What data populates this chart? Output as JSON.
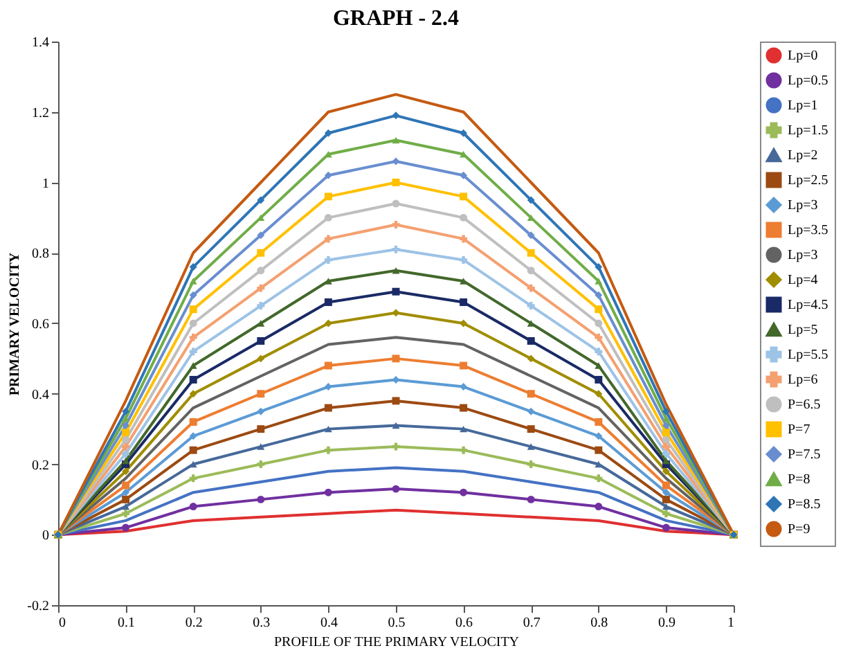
{
  "chart_data": {
    "type": "line",
    "title": "GRAPH - 2.4",
    "xlabel": "PROFILE OF THE PRIMARY VELOCITY",
    "ylabel": "PRIMARY VELOCITY",
    "x": [
      0,
      0.1,
      0.2,
      0.3,
      0.4,
      0.5,
      0.6,
      0.7,
      0.8,
      0.9,
      1
    ],
    "xlim": [
      0,
      1
    ],
    "xticks": [
      0,
      0.1,
      0.2,
      0.3,
      0.4,
      0.5,
      0.6,
      0.7,
      0.8,
      0.9,
      1
    ],
    "ylim": [
      -0.2,
      1.4
    ],
    "yticks": [
      -0.2,
      0,
      0.2,
      0.4,
      0.6,
      0.8,
      1,
      1.2,
      1.4
    ],
    "grid": false,
    "legend": "right",
    "series": [
      {
        "name": "Lp=0",
        "color": "#e03030",
        "marker": "none",
        "values": [
          0,
          0.01,
          0.04,
          0.05,
          0.06,
          0.07,
          0.06,
          0.05,
          0.04,
          0.01,
          0
        ]
      },
      {
        "name": "Lp=0.5",
        "color": "#7030a0",
        "marker": "circle",
        "values": [
          0,
          0.02,
          0.08,
          0.1,
          0.12,
          0.13,
          0.12,
          0.1,
          0.08,
          0.02,
          0
        ]
      },
      {
        "name": "Lp=1",
        "color": "#4472c4",
        "marker": "none",
        "values": [
          0,
          0.04,
          0.12,
          0.15,
          0.18,
          0.19,
          0.18,
          0.15,
          0.12,
          0.04,
          0
        ]
      },
      {
        "name": "Lp=1.5",
        "color": "#9bbb59",
        "marker": "cross",
        "values": [
          0,
          0.06,
          0.16,
          0.2,
          0.24,
          0.25,
          0.24,
          0.2,
          0.16,
          0.06,
          0
        ]
      },
      {
        "name": "Lp=2",
        "color": "#46699a",
        "marker": "triangle",
        "values": [
          0,
          0.08,
          0.2,
          0.25,
          0.3,
          0.31,
          0.3,
          0.25,
          0.2,
          0.08,
          0
        ]
      },
      {
        "name": "Lp=2.5",
        "color": "#9c4a12",
        "marker": "square",
        "values": [
          0,
          0.1,
          0.24,
          0.3,
          0.36,
          0.38,
          0.36,
          0.3,
          0.24,
          0.1,
          0
        ]
      },
      {
        "name": "Lp=3",
        "color": "#5b9bd5",
        "marker": "diamond",
        "values": [
          0,
          0.12,
          0.28,
          0.35,
          0.42,
          0.44,
          0.42,
          0.35,
          0.28,
          0.12,
          0
        ]
      },
      {
        "name": "Lp=3.5",
        "color": "#ed7d31",
        "marker": "square",
        "values": [
          0,
          0.14,
          0.32,
          0.4,
          0.48,
          0.5,
          0.48,
          0.4,
          0.32,
          0.14,
          0
        ]
      },
      {
        "name": "Lp=3",
        "color": "#636363",
        "marker": "none",
        "values": [
          0,
          0.16,
          0.36,
          0.45,
          0.54,
          0.56,
          0.54,
          0.45,
          0.36,
          0.16,
          0
        ]
      },
      {
        "name": "Lp=4",
        "color": "#a08d00",
        "marker": "diamond",
        "values": [
          0,
          0.18,
          0.4,
          0.5,
          0.6,
          0.63,
          0.6,
          0.5,
          0.4,
          0.18,
          0
        ]
      },
      {
        "name": "Lp=4.5",
        "color": "#1a2a66",
        "marker": "square",
        "values": [
          0,
          0.2,
          0.44,
          0.55,
          0.66,
          0.69,
          0.66,
          0.55,
          0.44,
          0.2,
          0
        ]
      },
      {
        "name": "Lp=5",
        "color": "#43682b",
        "marker": "triangle",
        "values": [
          0,
          0.21,
          0.48,
          0.6,
          0.72,
          0.75,
          0.72,
          0.6,
          0.48,
          0.21,
          0
        ]
      },
      {
        "name": "Lp=5.5",
        "color": "#9dc3e6",
        "marker": "cross",
        "values": [
          0,
          0.23,
          0.52,
          0.65,
          0.78,
          0.81,
          0.78,
          0.65,
          0.52,
          0.23,
          0
        ]
      },
      {
        "name": "Lp=6",
        "color": "#f4a070",
        "marker": "cross",
        "values": [
          0,
          0.25,
          0.56,
          0.7,
          0.84,
          0.88,
          0.84,
          0.7,
          0.56,
          0.25,
          0
        ]
      },
      {
        "name": "P=6.5",
        "color": "#bfbfbf",
        "marker": "circle",
        "values": [
          0,
          0.27,
          0.6,
          0.75,
          0.9,
          0.94,
          0.9,
          0.75,
          0.6,
          0.27,
          0
        ]
      },
      {
        "name": "P=7",
        "color": "#ffc000",
        "marker": "square",
        "values": [
          0,
          0.29,
          0.64,
          0.8,
          0.96,
          1.0,
          0.96,
          0.8,
          0.64,
          0.29,
          0
        ]
      },
      {
        "name": "P=7.5",
        "color": "#698ed0",
        "marker": "diamond",
        "values": [
          0,
          0.31,
          0.68,
          0.85,
          1.02,
          1.06,
          1.02,
          0.85,
          0.68,
          0.31,
          0
        ]
      },
      {
        "name": "P=8",
        "color": "#70ad47",
        "marker": "triangle",
        "values": [
          0,
          0.33,
          0.72,
          0.9,
          1.08,
          1.12,
          1.08,
          0.9,
          0.72,
          0.33,
          0
        ]
      },
      {
        "name": "P=8.5",
        "color": "#2e75b6",
        "marker": "diamond",
        "values": [
          0,
          0.35,
          0.76,
          0.95,
          1.14,
          1.19,
          1.14,
          0.95,
          0.76,
          0.35,
          0
        ]
      },
      {
        "name": "P=9",
        "color": "#c55a11",
        "marker": "none",
        "values": [
          0,
          0.38,
          0.8,
          1.0,
          1.2,
          1.25,
          1.2,
          1.0,
          0.8,
          0.37,
          0
        ]
      }
    ]
  }
}
